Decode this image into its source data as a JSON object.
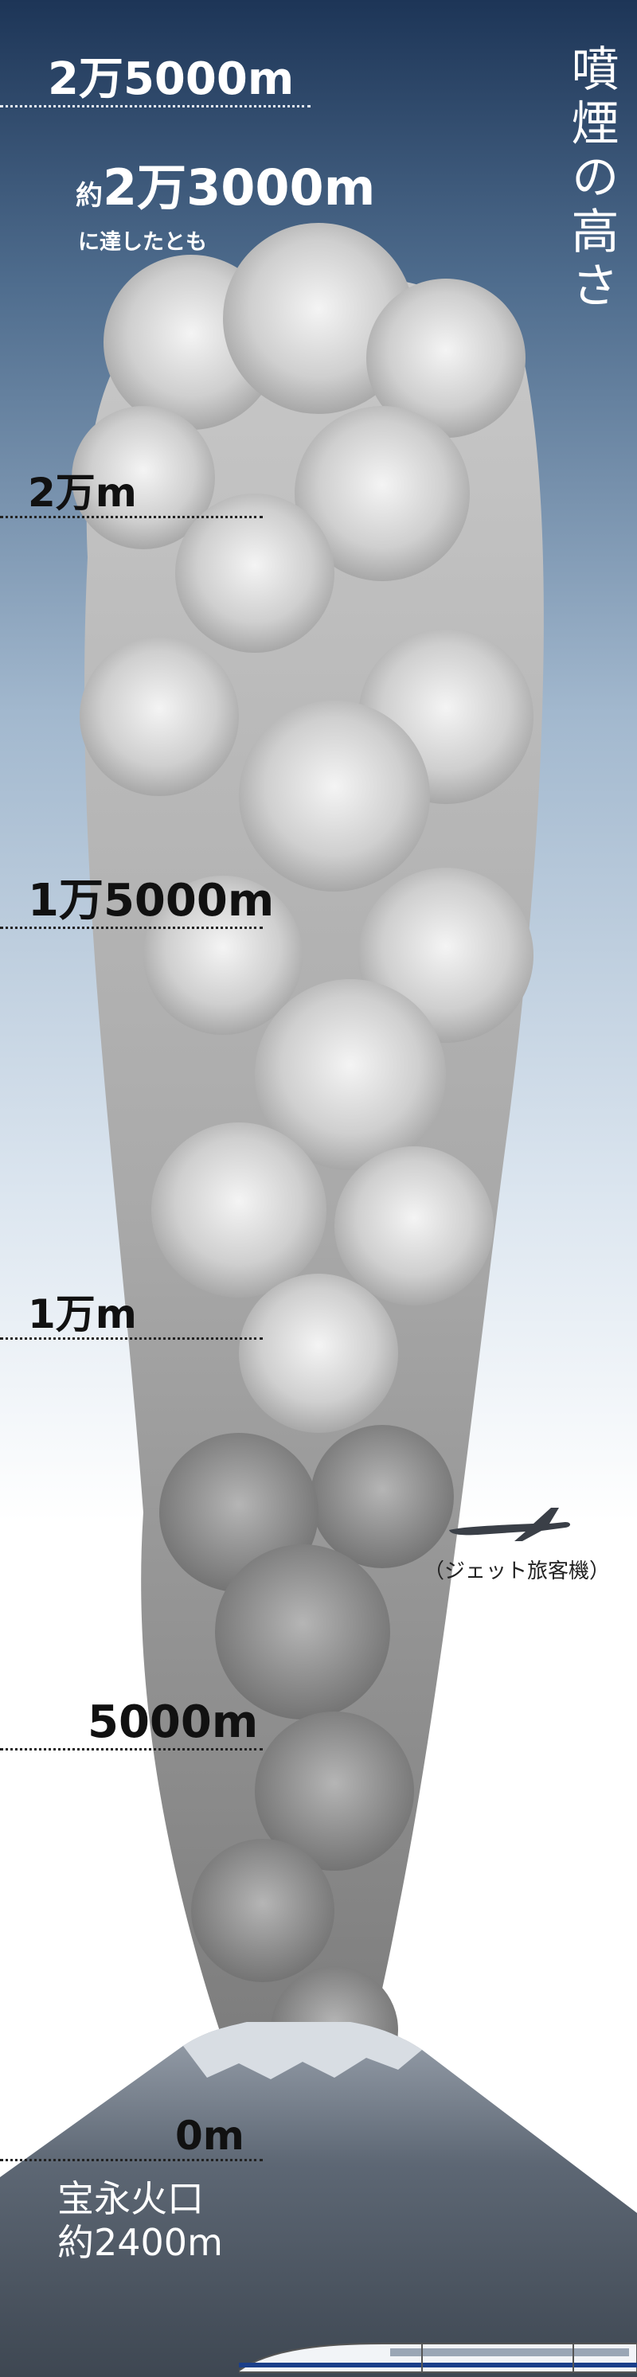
{
  "title": "噴煙の高さ",
  "peak": {
    "prefix": "約",
    "value": "2万3000m",
    "suffix": "に達したとも"
  },
  "altitudes": [
    {
      "label": "2万5000m",
      "meters": 25000
    },
    {
      "label": "2万m",
      "meters": 20000
    },
    {
      "label": "1万5000m",
      "meters": 15000
    },
    {
      "label": "1万m",
      "meters": 10000
    },
    {
      "label": "5000m",
      "meters": 5000
    },
    {
      "label": "0m",
      "meters": 0
    }
  ],
  "crater": {
    "line1": "宝永火口",
    "line2": "約2400m"
  },
  "jet": {
    "caption": "（ジェット旅客機）",
    "icon": "airplane-icon"
  },
  "train": {
    "icon": "shinkansen-train-icon"
  },
  "colors": {
    "sky_top": "#1d3557",
    "sky_bottom": "#ffffff",
    "plume": "#8a8a8a",
    "mountain": "#4f5966",
    "label_light": "#ffffff",
    "label_dark": "#111111"
  }
}
